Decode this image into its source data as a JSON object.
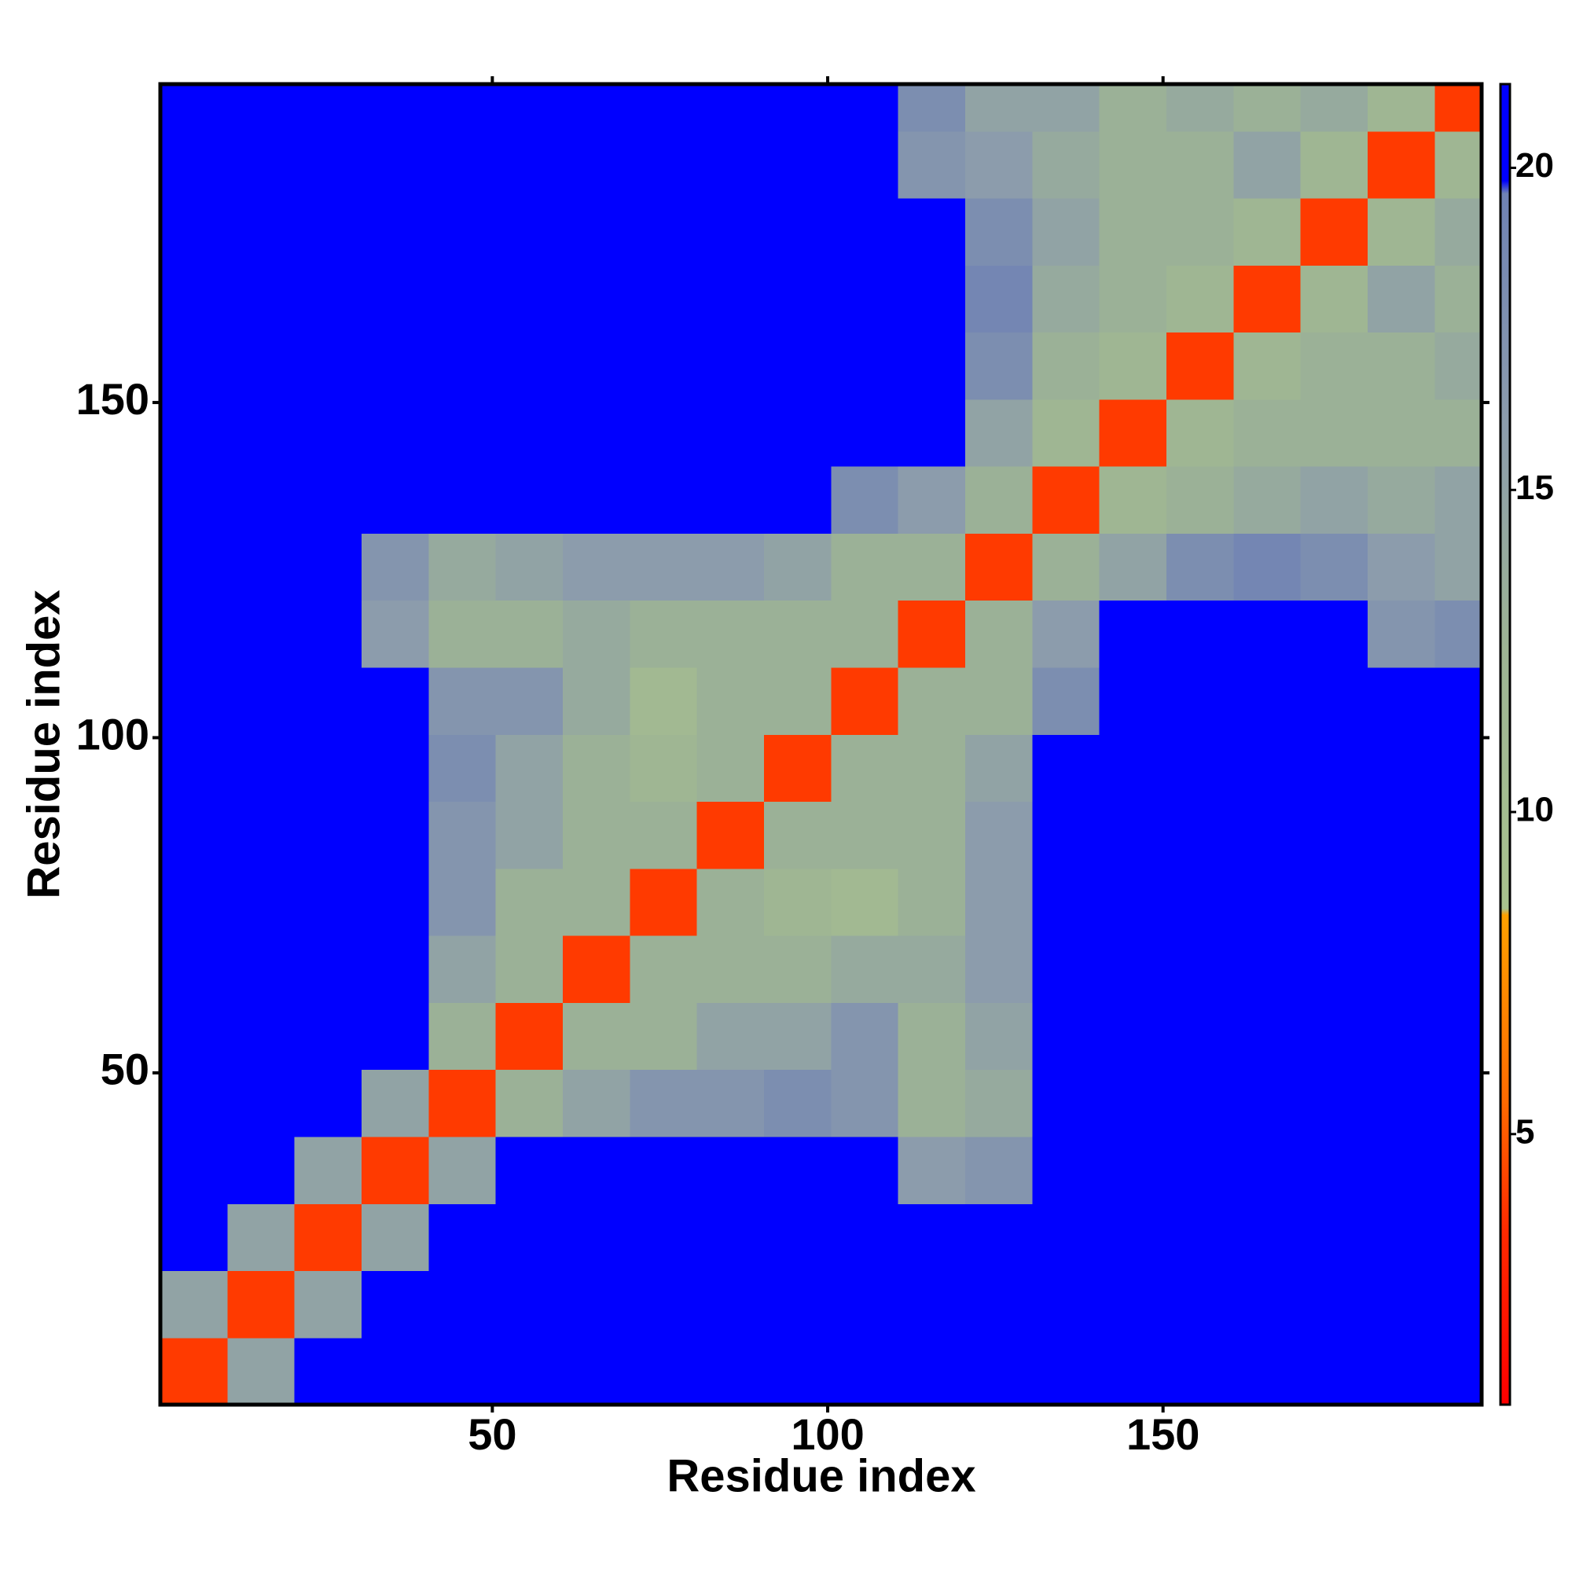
{
  "chart_data": {
    "type": "heatmap",
    "xlabel": "Residue index",
    "ylabel": "Residue index",
    "xlim": [
      0.5,
      197.5
    ],
    "ylim": [
      0.5,
      197.5
    ],
    "xticks": [
      50,
      100,
      150
    ],
    "yticks": [
      50,
      100,
      150
    ],
    "xbins": [
      0.5,
      10.5,
      20.5,
      30.5,
      40.5,
      50.5,
      60.5,
      70.5,
      80.5,
      90.5,
      100.5,
      110.5,
      120.5,
      130.5,
      140.5,
      150.5,
      160.5,
      170.5,
      180.5,
      190.5,
      197.5
    ],
    "ybins": [
      0.5,
      10.5,
      20.5,
      30.5,
      40.5,
      50.5,
      60.5,
      70.5,
      80.5,
      90.5,
      100.5,
      110.5,
      120.5,
      130.5,
      140.5,
      150.5,
      160.5,
      170.5,
      180.5,
      190.5,
      197.5
    ],
    "z": [
      [
        4,
        15,
        21,
        21,
        21,
        21,
        21,
        21,
        21,
        21,
        21,
        21,
        21,
        21,
        21,
        21,
        21,
        21,
        21,
        21
      ],
      [
        15,
        4,
        15,
        21,
        21,
        21,
        21,
        21,
        21,
        21,
        21,
        21,
        21,
        21,
        21,
        21,
        21,
        21,
        21,
        21
      ],
      [
        21,
        15,
        4,
        15,
        21,
        21,
        21,
        21,
        21,
        21,
        21,
        21,
        21,
        21,
        21,
        21,
        21,
        21,
        21,
        21
      ],
      [
        21,
        21,
        15,
        4,
        15,
        21,
        21,
        21,
        21,
        21,
        21,
        16,
        17,
        21,
        21,
        21,
        21,
        21,
        21,
        21
      ],
      [
        21,
        21,
        21,
        15,
        4,
        13,
        15,
        17,
        17,
        18,
        17,
        13,
        14,
        21,
        21,
        21,
        21,
        21,
        21,
        21
      ],
      [
        21,
        21,
        21,
        21,
        13,
        4,
        13,
        13,
        15,
        15,
        17,
        13,
        15,
        21,
        21,
        21,
        21,
        21,
        21,
        21
      ],
      [
        21,
        21,
        21,
        21,
        15,
        13,
        4,
        13,
        13,
        13,
        14,
        14,
        16,
        21,
        21,
        21,
        21,
        21,
        21,
        21
      ],
      [
        21,
        21,
        21,
        21,
        17,
        13,
        13,
        4,
        13,
        12,
        11,
        13,
        16,
        21,
        21,
        21,
        21,
        21,
        21,
        21
      ],
      [
        21,
        21,
        21,
        21,
        17,
        15,
        13,
        13,
        4,
        13,
        13,
        13,
        16,
        21,
        21,
        21,
        21,
        21,
        21,
        21
      ],
      [
        21,
        21,
        21,
        21,
        18,
        15,
        13,
        12,
        13,
        4,
        13,
        13,
        15,
        21,
        21,
        21,
        21,
        21,
        21,
        21
      ],
      [
        21,
        21,
        21,
        21,
        17,
        17,
        14,
        11,
        13,
        13,
        4,
        13,
        13,
        18,
        21,
        21,
        21,
        21,
        21,
        21
      ],
      [
        21,
        21,
        21,
        16,
        13,
        13,
        14,
        13,
        13,
        13,
        13,
        4,
        13,
        16,
        21,
        21,
        21,
        21,
        17,
        18
      ],
      [
        21,
        21,
        21,
        17,
        14,
        15,
        16,
        16,
        16,
        15,
        13,
        13,
        4,
        13,
        15,
        18,
        19,
        18,
        16,
        15
      ],
      [
        21,
        21,
        21,
        21,
        21,
        21,
        21,
        21,
        21,
        21,
        18,
        16,
        13,
        4,
        12,
        13,
        14,
        15,
        14,
        15
      ],
      [
        21,
        21,
        21,
        21,
        21,
        21,
        21,
        21,
        21,
        21,
        21,
        21,
        15,
        12,
        4,
        12,
        13,
        13,
        13,
        13
      ],
      [
        21,
        21,
        21,
        21,
        21,
        21,
        21,
        21,
        21,
        21,
        21,
        21,
        18,
        13,
        12,
        4,
        12,
        13,
        13,
        14
      ],
      [
        21,
        21,
        21,
        21,
        21,
        21,
        21,
        21,
        21,
        21,
        21,
        21,
        19,
        14,
        13,
        12,
        4,
        12,
        15,
        13
      ],
      [
        21,
        21,
        21,
        21,
        21,
        21,
        21,
        21,
        21,
        21,
        21,
        21,
        18,
        15,
        13,
        13,
        12,
        4,
        12,
        14
      ],
      [
        21,
        21,
        21,
        21,
        21,
        21,
        21,
        21,
        21,
        21,
        21,
        17,
        16,
        14,
        13,
        13,
        15,
        12,
        4,
        12
      ],
      [
        21,
        21,
        21,
        21,
        21,
        21,
        21,
        21,
        21,
        21,
        21,
        18,
        15,
        15,
        13,
        14,
        13,
        14,
        12,
        4
      ]
    ],
    "colorbar": {
      "lim": [
        0.8,
        21.3
      ],
      "ticks": [
        5,
        10,
        15,
        20
      ]
    },
    "colorscale": [
      [
        0.8,
        "#ff0000"
      ],
      [
        3.5,
        "#ff2a00"
      ],
      [
        5.5,
        "#ff6a00"
      ],
      [
        8.4,
        "#ffa000"
      ],
      [
        8.5,
        "#a9c28e"
      ],
      [
        12.5,
        "#9db494"
      ],
      [
        16,
        "#8c9cac"
      ],
      [
        19.6,
        "#6f82b4"
      ],
      [
        19.8,
        "#0000ff"
      ],
      [
        21.3,
        "#0000ff"
      ]
    ]
  }
}
